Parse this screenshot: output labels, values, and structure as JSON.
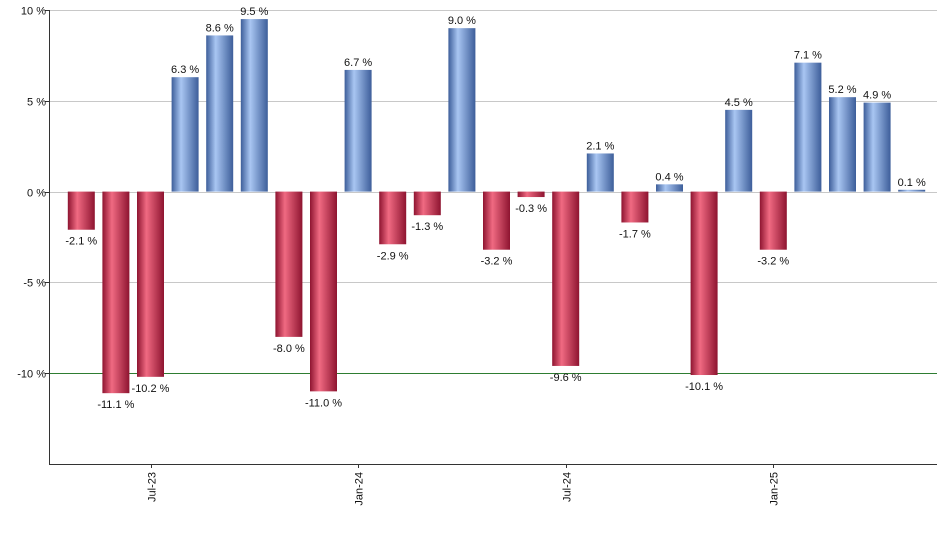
{
  "chart_data": {
    "type": "bar",
    "title": "",
    "xlabel": "",
    "ylabel": "",
    "ylim": [
      -15,
      10
    ],
    "yticks": [
      10,
      5,
      0,
      -5,
      -10
    ],
    "ytick_labels": [
      "10 %",
      "5 %",
      "0 %",
      "-5 %",
      "-10 %"
    ],
    "grid": true,
    "reference_line": {
      "value": -10,
      "color": "#2e7d32"
    },
    "x_tick_labels": [
      {
        "label": "Jul-23",
        "month_index": 2
      },
      {
        "label": "Jan-24",
        "month_index": 8
      },
      {
        "label": "Jul-24",
        "month_index": 14
      },
      {
        "label": "Jan-25",
        "month_index": 20
      }
    ],
    "values": [
      -2.1,
      -11.1,
      -10.2,
      6.3,
      8.6,
      9.5,
      -8.0,
      -11.0,
      6.7,
      -2.9,
      -1.3,
      9.0,
      -3.2,
      -0.3,
      -9.6,
      2.1,
      -1.7,
      0.4,
      -10.1,
      4.5,
      -3.2,
      7.1,
      5.2,
      4.9,
      0.1
    ],
    "labels": [
      "-2.1 %",
      "-11.1 %",
      "-10.2 %",
      "6.3 %",
      "8.6 %",
      "9.5 %",
      "-8.0 %",
      "-11.0 %",
      "6.7 %",
      "-2.9 %",
      "-1.3 %",
      "9.0 %",
      "-3.2 %",
      "-0.3 %",
      "-9.6 %",
      "2.1 %",
      "-1.7 %",
      "0.4 %",
      "-10.1 %",
      "4.5 %",
      "-3.2 %",
      "7.1 %",
      "5.2 %",
      "4.9 %",
      "0.1 %"
    ],
    "colors": {
      "positive_light": "#a9c6f2",
      "positive_dark": "#3d5e9a",
      "negative_light": "#f06a82",
      "negative_dark": "#8e1430",
      "grid": "#c8c8c8",
      "axis": "#333333"
    }
  }
}
